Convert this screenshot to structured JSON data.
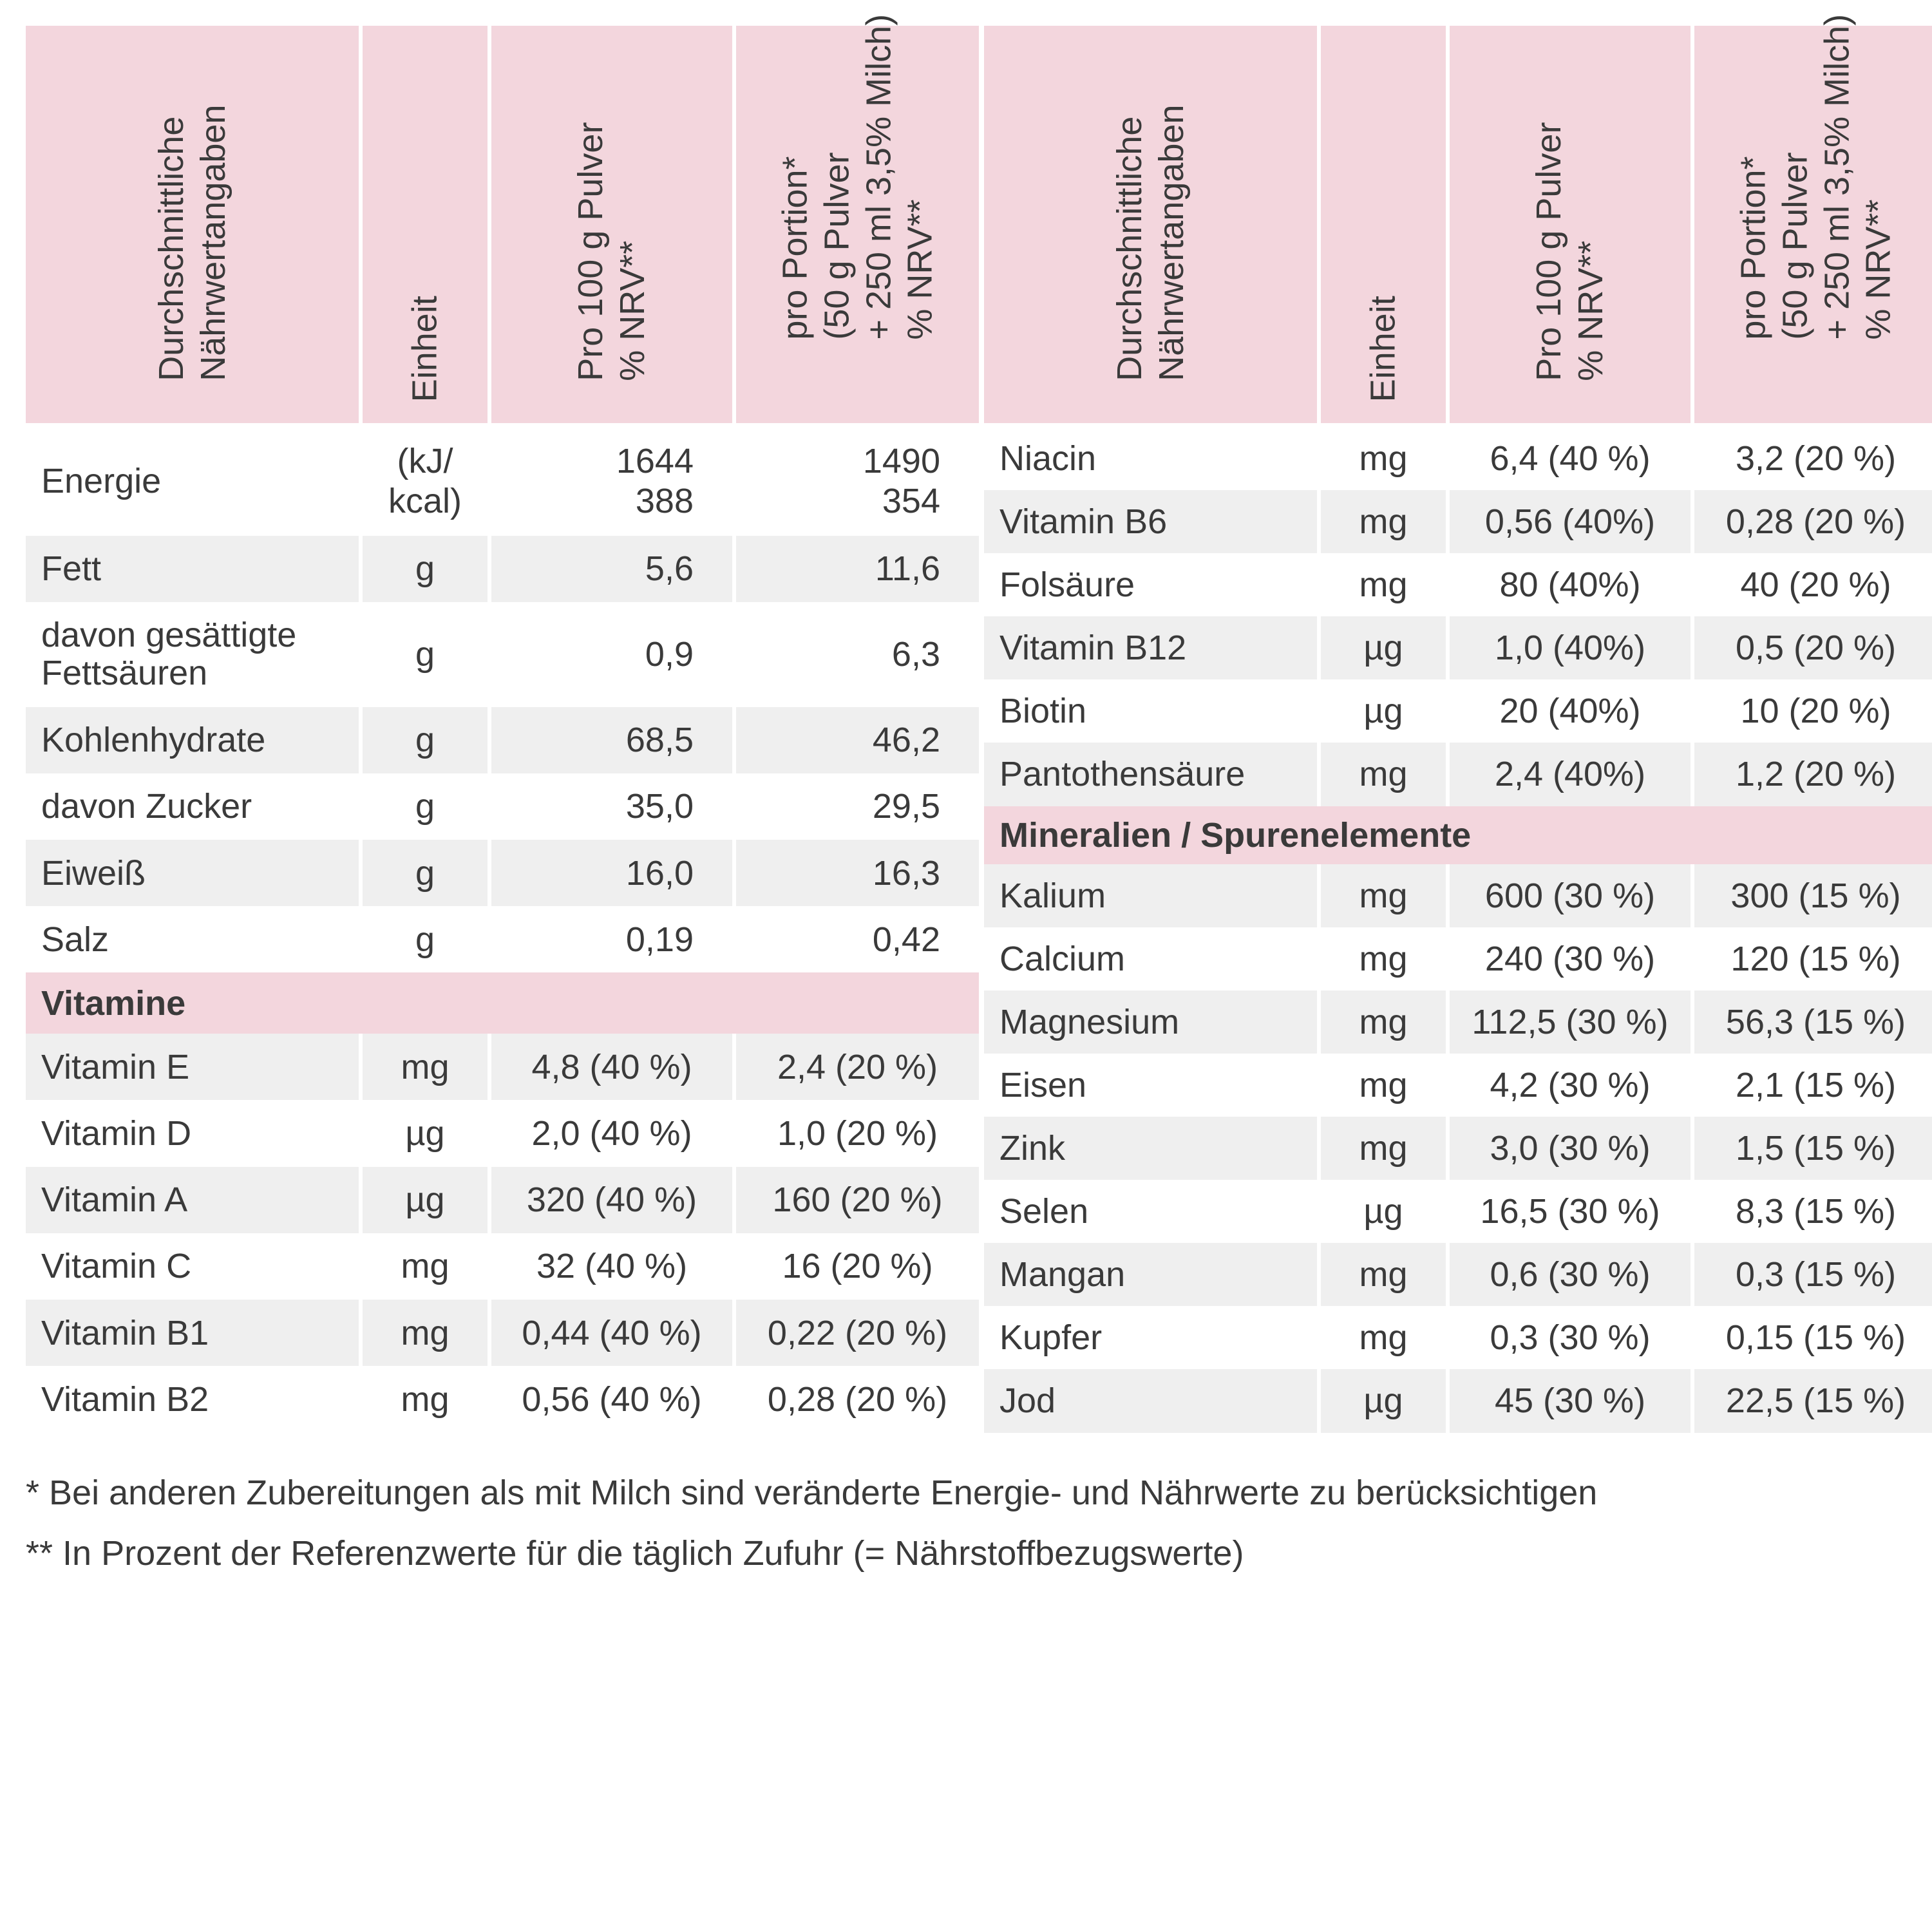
{
  "headers": {
    "col1": [
      "Durchschnittliche",
      "Nährwertangaben"
    ],
    "col2": [
      "Einheit"
    ],
    "col3": [
      "Pro 100 g Pulver",
      "% NRV**"
    ],
    "col4": [
      "pro Portion*",
      "(50 g Pulver",
      "+ 250 ml 3,5% Milch)",
      "% NRV**"
    ]
  },
  "left": [
    {
      "type": "row",
      "stripe": "odd",
      "name": "Energie",
      "unit": "(kJ/\nkcal)",
      "v1": "1644\n388",
      "v2": "1490\n354",
      "align": "r"
    },
    {
      "type": "row",
      "stripe": "even",
      "name": "Fett",
      "unit": "g",
      "v1": "5,6",
      "v2": "11,6",
      "align": "r"
    },
    {
      "type": "row",
      "stripe": "odd",
      "name": "davon gesättigte\nFettsäuren",
      "unit": "g",
      "v1": "0,9",
      "v2": "6,3",
      "align": "r"
    },
    {
      "type": "row",
      "stripe": "even",
      "name": "Kohlenhydrate",
      "unit": "g",
      "v1": "68,5",
      "v2": "46,2",
      "align": "r"
    },
    {
      "type": "row",
      "stripe": "odd",
      "name": "davon Zucker",
      "unit": "g",
      "v1": "35,0",
      "v2": "29,5",
      "align": "r"
    },
    {
      "type": "row",
      "stripe": "even",
      "name": "Eiweiß",
      "unit": "g",
      "v1": "16,0",
      "v2": "16,3",
      "align": "r"
    },
    {
      "type": "row",
      "stripe": "odd",
      "name": "Salz",
      "unit": "g",
      "v1": "0,19",
      "v2": "0,42",
      "align": "r"
    },
    {
      "type": "section",
      "label": "Vitamine"
    },
    {
      "type": "row",
      "stripe": "even",
      "name": "Vitamin E",
      "unit": "mg",
      "v1": "4,8 (40 %)",
      "v2": "2,4 (20 %)",
      "align": "c"
    },
    {
      "type": "row",
      "stripe": "odd",
      "name": "Vitamin D",
      "unit": "µg",
      "v1": "2,0 (40 %)",
      "v2": "1,0 (20 %)",
      "align": "c"
    },
    {
      "type": "row",
      "stripe": "even",
      "name": "Vitamin A",
      "unit": "µg",
      "v1": "320 (40 %)",
      "v2": "160 (20 %)",
      "align": "c"
    },
    {
      "type": "row",
      "stripe": "odd",
      "name": "Vitamin C",
      "unit": "mg",
      "v1": "32 (40 %)",
      "v2": "16 (20 %)",
      "align": "c"
    },
    {
      "type": "row",
      "stripe": "even",
      "name": "Vitamin B1",
      "unit": "mg",
      "v1": "0,44 (40 %)",
      "v2": "0,22 (20 %)",
      "align": "c"
    },
    {
      "type": "row",
      "stripe": "odd",
      "name": "Vitamin B2",
      "unit": "mg",
      "v1": "0,56 (40 %)",
      "v2": "0,28 (20 %)",
      "align": "c"
    }
  ],
  "right": [
    {
      "type": "row",
      "stripe": "odd",
      "name": "Niacin",
      "unit": "mg",
      "v1": "6,4 (40 %)",
      "v2": "3,2 (20 %)",
      "align": "c"
    },
    {
      "type": "row",
      "stripe": "even",
      "name": "Vitamin B6",
      "unit": "mg",
      "v1": "0,56 (40%)",
      "v2": "0,28  (20 %)",
      "align": "c"
    },
    {
      "type": "row",
      "stripe": "odd",
      "name": "Folsäure",
      "unit": "mg",
      "v1": "80 (40%)",
      "v2": "40  (20 %)",
      "align": "c"
    },
    {
      "type": "row",
      "stripe": "even",
      "name": "Vitamin B12",
      "unit": "µg",
      "v1": "1,0 (40%)",
      "v2": "0,5  (20 %)",
      "align": "c"
    },
    {
      "type": "row",
      "stripe": "odd",
      "name": "Biotin",
      "unit": "µg",
      "v1": "20 (40%)",
      "v2": "10 (20 %)",
      "align": "c"
    },
    {
      "type": "row",
      "stripe": "even",
      "name": "Pantothensäure",
      "unit": "mg",
      "v1": "2,4 (40%)",
      "v2": "1,2  (20 %)",
      "align": "c"
    },
    {
      "type": "section",
      "label": "Mineralien / Spurenelemente"
    },
    {
      "type": "row",
      "stripe": "even",
      "name": "Kalium",
      "unit": "mg",
      "v1": "600 (30 %)",
      "v2": "300 (15  %)",
      "align": "c"
    },
    {
      "type": "row",
      "stripe": "odd",
      "name": "Calcium",
      "unit": "mg",
      "v1": "240 (30 %)",
      "v2": "120 (15  %)",
      "align": "c"
    },
    {
      "type": "row",
      "stripe": "even",
      "name": "Magnesium",
      "unit": "mg",
      "v1": "112,5 (30 %)",
      "v2": "56,3 (15  %)",
      "align": "c"
    },
    {
      "type": "row",
      "stripe": "odd",
      "name": "Eisen",
      "unit": "mg",
      "v1": "4,2  (30 %)",
      "v2": "2,1 (15  %)",
      "align": "c"
    },
    {
      "type": "row",
      "stripe": "even",
      "name": "Zink",
      "unit": "mg",
      "v1": "3,0  (30 %)",
      "v2": "1,5 (15  %)",
      "align": "c"
    },
    {
      "type": "row",
      "stripe": "odd",
      "name": "Selen",
      "unit": "µg",
      "v1": "16,5  (30 %)",
      "v2": "8,3 (15  %)",
      "align": "c"
    },
    {
      "type": "row",
      "stripe": "even",
      "name": "Mangan",
      "unit": "mg",
      "v1": "0,6  (30 %)",
      "v2": "0,3 (15  %)",
      "align": "c"
    },
    {
      "type": "row",
      "stripe": "odd",
      "name": "Kupfer",
      "unit": "mg",
      "v1": "0,3  (30 %)",
      "v2": "0,15 (15 %)",
      "align": "c"
    },
    {
      "type": "row",
      "stripe": "even",
      "name": "Jod",
      "unit": "µg",
      "v1": "45 (30 %)",
      "v2": "22,5  (15 %)",
      "align": "c"
    }
  ],
  "footnotes": {
    "f1": "* Bei anderen Zubereitungen als mit Milch sind veränderte Energie- und Nährwerte zu berücksichtigen",
    "f2": "** In Prozent der Referenzwerte für die täglich Zufuhr (= Nährstoffbezugswerte)"
  },
  "colors": {
    "header_bg": "#f3d6dd",
    "stripe_even": "#efefef",
    "stripe_odd": "#ffffff",
    "text": "#3a3a3a"
  }
}
